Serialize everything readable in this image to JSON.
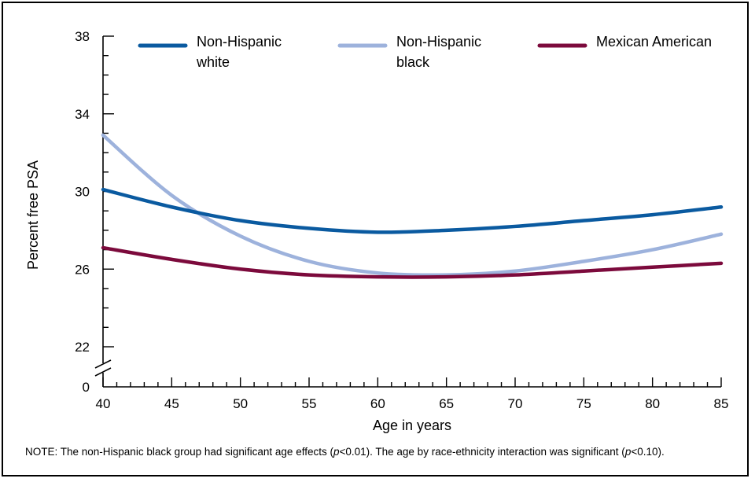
{
  "chart_data": {
    "type": "line",
    "title": "",
    "xlabel": "Age in years",
    "ylabel": "Percent free PSA",
    "xlim": [
      40,
      85
    ],
    "ylim": [
      20,
      38
    ],
    "axis_break": true,
    "x_ticks": [
      40,
      45,
      50,
      55,
      60,
      65,
      70,
      75,
      80,
      85
    ],
    "y_ticks": [
      {
        "value": 22,
        "label": "22"
      },
      {
        "value": 26,
        "label": "26"
      },
      {
        "value": 30,
        "label": "30"
      },
      {
        "value": 34,
        "label": "34"
      },
      {
        "value": 38,
        "label": "38"
      }
    ],
    "y_break_label": "0",
    "legend_position": "top",
    "series": [
      {
        "name": "Non-Hispanic white",
        "legend_lines": [
          "Non-Hispanic",
          "white"
        ],
        "color": "#0a5aa0",
        "x": [
          40,
          45,
          50,
          55,
          60,
          65,
          70,
          75,
          80,
          85
        ],
        "y": [
          30.1,
          29.2,
          28.5,
          28.1,
          27.9,
          28.0,
          28.2,
          28.5,
          28.8,
          29.2
        ]
      },
      {
        "name": "Non-Hispanic black",
        "legend_lines": [
          "Non-Hispanic",
          "black"
        ],
        "color": "#9db2dc",
        "x": [
          40,
          45,
          50,
          55,
          60,
          65,
          70,
          75,
          80,
          85
        ],
        "y": [
          32.9,
          29.8,
          27.7,
          26.4,
          25.8,
          25.7,
          25.9,
          26.4,
          27.0,
          27.8
        ]
      },
      {
        "name": "Mexican American",
        "legend_lines": [
          "Mexican American"
        ],
        "color": "#7c0a3c",
        "x": [
          40,
          45,
          50,
          55,
          60,
          65,
          70,
          75,
          80,
          85
        ],
        "y": [
          27.1,
          26.5,
          26.0,
          25.7,
          25.6,
          25.6,
          25.7,
          25.9,
          26.1,
          26.3
        ]
      }
    ]
  },
  "note": {
    "prefix": "NOTE:  The non-Hispanic black group had significant age effects (",
    "p1": "p",
    "p1_value": "<0.01).  The age by race-ethnicity interaction was significant (",
    "p2": "p",
    "p2_value": "<0.10)."
  }
}
